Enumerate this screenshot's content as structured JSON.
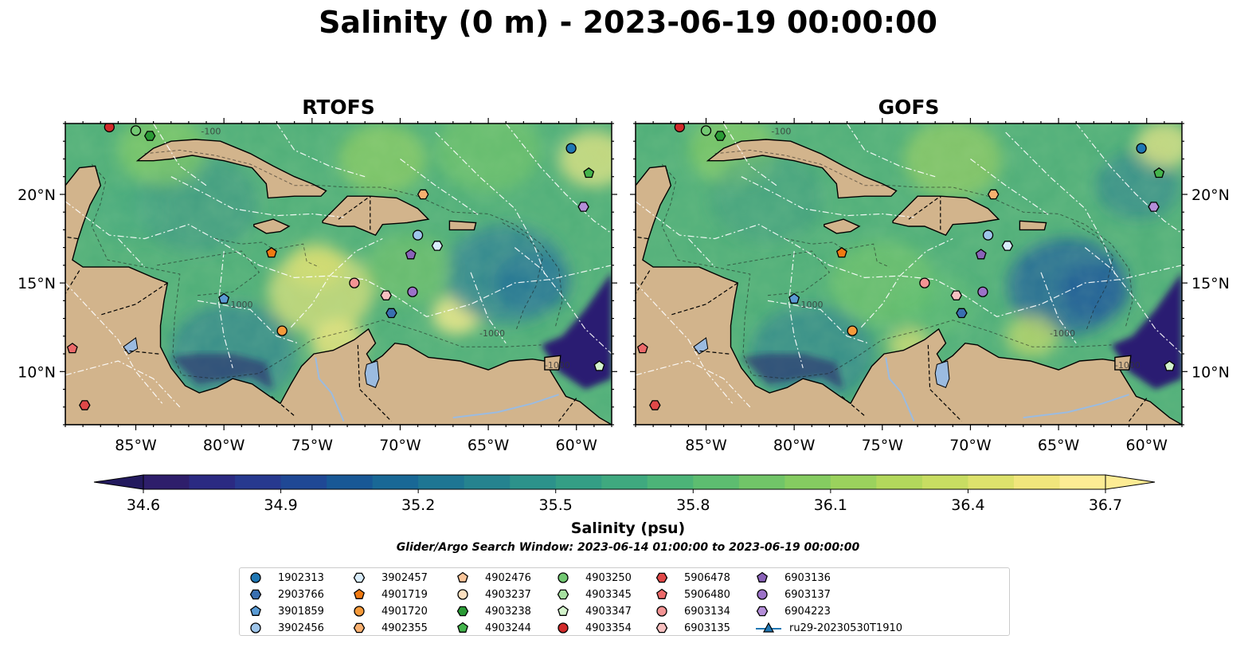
{
  "title": "Salinity (0 m) - 2023-06-19 00:00:00",
  "panels": [
    {
      "title": "RTOFS",
      "variant": "rtofs"
    },
    {
      "title": "GOFS",
      "variant": "gofs"
    }
  ],
  "map": {
    "lon_range": [
      -89,
      -58
    ],
    "lat_range": [
      7,
      24
    ],
    "lon_ticks": [
      "85°W",
      "80°W",
      "75°W",
      "70°W",
      "65°W",
      "60°W"
    ],
    "lon_tick_values": [
      -85,
      -80,
      -75,
      -70,
      -65,
      -60
    ],
    "lat_ticks": [
      "20°N",
      "15°N",
      "10°N"
    ],
    "lat_tick_values": [
      20,
      15,
      10
    ],
    "contour_labels": [
      "-1000",
      "-100"
    ],
    "colors": {
      "land": "#d2b48c",
      "lake": "#9bbbe0",
      "low": "#2a1a6a",
      "mid": "#3e9a7e",
      "high": "#f5e87a"
    }
  },
  "colorbar": {
    "title": "Salinity (psu)",
    "min": 34.6,
    "max": 36.7,
    "labels": [
      "34.6",
      "34.9",
      "35.2",
      "35.5",
      "35.8",
      "36.1",
      "36.4",
      "36.7"
    ],
    "colors": [
      "#2e1e6b",
      "#2b2a82",
      "#27398f",
      "#1f4895",
      "#185896",
      "#196896",
      "#1e7693",
      "#25838f",
      "#2c928b",
      "#349e85",
      "#3fa97f",
      "#4cb478",
      "#5dbd70",
      "#71c568",
      "#85cc61",
      "#9bd25d",
      "#b3d85c",
      "#c8dd62",
      "#dde26c",
      "#f1e67c",
      "#fdec94"
    ]
  },
  "search_window": "Glider/Argo Search Window: 2023-06-14 01:00:00 to 2023-06-19 00:00:00",
  "legend": [
    {
      "label": "1902313",
      "marker": "circle",
      "color": "#1f77b4"
    },
    {
      "label": "2903766",
      "marker": "hexagon",
      "color": "#3a6fb0"
    },
    {
      "label": "3901859",
      "marker": "pentagon",
      "color": "#5a9bd4"
    },
    {
      "label": "3902456",
      "marker": "circle",
      "color": "#9ec5ea"
    },
    {
      "label": "3902457",
      "marker": "hexagon",
      "color": "#d8ecfb"
    },
    {
      "label": "4901719",
      "marker": "pentagon",
      "color": "#f07a12"
    },
    {
      "label": "4901720",
      "marker": "circle",
      "color": "#f59a3a"
    },
    {
      "label": "4902355",
      "marker": "hexagon",
      "color": "#f8b070"
    },
    {
      "label": "4902476",
      "marker": "pentagon",
      "color": "#fac59a"
    },
    {
      "label": "4903237",
      "marker": "circle",
      "color": "#fde0c0"
    },
    {
      "label": "4903238",
      "marker": "hexagon",
      "color": "#2a9a35"
    },
    {
      "label": "4903244",
      "marker": "pentagon",
      "color": "#44b44c"
    },
    {
      "label": "4903250",
      "marker": "circle",
      "color": "#72c872"
    },
    {
      "label": "4903345",
      "marker": "hexagon",
      "color": "#a6e0a0"
    },
    {
      "label": "4903347",
      "marker": "pentagon",
      "color": "#d4f4cc"
    },
    {
      "label": "4903354",
      "marker": "circle",
      "color": "#d12a2a"
    },
    {
      "label": "5906478",
      "marker": "hexagon",
      "color": "#e04848"
    },
    {
      "label": "5906480",
      "marker": "pentagon",
      "color": "#ec6a6a"
    },
    {
      "label": "6903134",
      "marker": "circle",
      "color": "#f39494"
    },
    {
      "label": "6903135",
      "marker": "hexagon",
      "color": "#f7c0c0"
    },
    {
      "label": "6903136",
      "marker": "pentagon",
      "color": "#8a62b8"
    },
    {
      "label": "6903137",
      "marker": "circle",
      "color": "#9c72c8"
    },
    {
      "label": "6904223",
      "marker": "hexagon",
      "color": "#b48ed8"
    },
    {
      "label": "ru29-20230530T1910",
      "marker": "triangle-line",
      "color": "#1f77b4"
    }
  ],
  "markers": [
    {
      "id": "1902313",
      "lon": -60.3,
      "lat": 22.6
    },
    {
      "id": "4903244",
      "lon": -59.3,
      "lat": 21.2
    },
    {
      "id": "6904223",
      "lon": -59.6,
      "lat": 19.3
    },
    {
      "id": "4902355",
      "lon": -68.7,
      "lat": 20.0
    },
    {
      "id": "3902456",
      "lon": -69.0,
      "lat": 17.7
    },
    {
      "id": "3902457",
      "lon": -67.9,
      "lat": 17.1
    },
    {
      "id": "6903136",
      "lon": -69.4,
      "lat": 16.6
    },
    {
      "id": "4901719",
      "lon": -77.3,
      "lat": 16.7
    },
    {
      "id": "6903134",
      "lon": -72.6,
      "lat": 15.0
    },
    {
      "id": "6903135",
      "lon": -70.8,
      "lat": 14.3
    },
    {
      "id": "6903137",
      "lon": -69.3,
      "lat": 14.5
    },
    {
      "id": "2903766",
      "lon": -70.5,
      "lat": 13.3
    },
    {
      "id": "3901859",
      "lon": -80.0,
      "lat": 14.1
    },
    {
      "id": "4901720",
      "lon": -76.7,
      "lat": 12.3
    },
    {
      "id": "4903347",
      "lon": -58.7,
      "lat": 10.3
    },
    {
      "id": "4903354",
      "lon": -86.5,
      "lat": 23.8
    },
    {
      "id": "4903250",
      "lon": -85.0,
      "lat": 23.6
    },
    {
      "id": "4903238",
      "lon": -84.2,
      "lat": 23.3
    },
    {
      "id": "5906480",
      "lon": -88.6,
      "lat": 11.3
    },
    {
      "id": "5906478",
      "lon": -87.9,
      "lat": 8.1
    }
  ]
}
